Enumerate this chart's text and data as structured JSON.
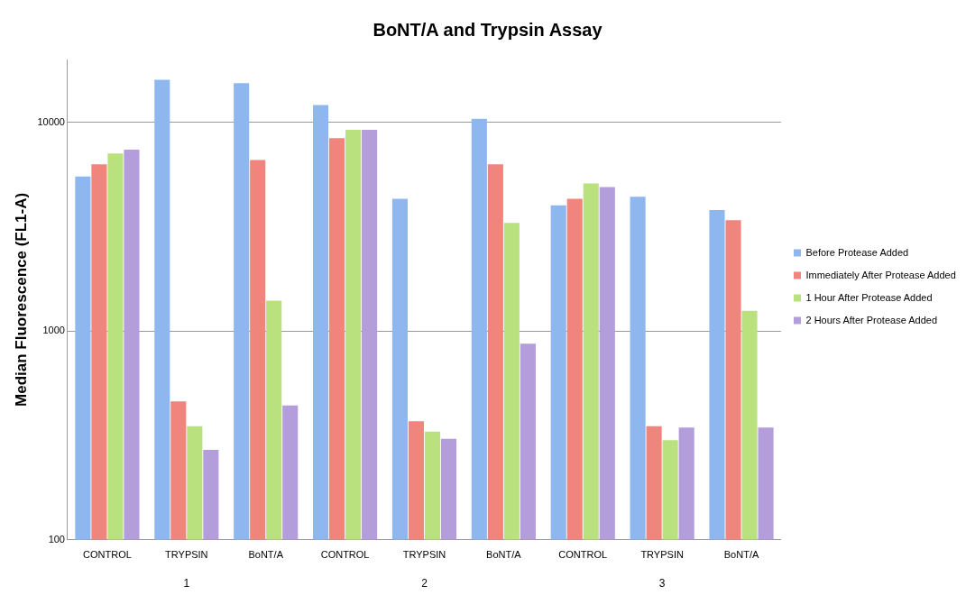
{
  "chart_data": {
    "type": "bar",
    "title": "BoNT/A and Trypsin Assay",
    "ylabel": "Median Fluorescence (FL1-A)",
    "categories": [
      "CONTROL",
      "TRYPSIN",
      "BoNT/A",
      "CONTROL",
      "TRYPSIN",
      "BoNT/A",
      "CONTROL",
      "TRYPSIN",
      "BoNT/A"
    ],
    "series": [
      {
        "name": "Before Protease Added",
        "color": "#8fb7ef",
        "values": [
          5500,
          16000,
          15400,
          12100,
          4300,
          10400,
          4000,
          4400,
          3800
        ]
      },
      {
        "name": "Immediately After Protease Added",
        "color": "#f0857e",
        "values": [
          6300,
          460,
          6600,
          8400,
          370,
          6300,
          4300,
          350,
          3400
        ]
      },
      {
        "name": "1 Hour After Protease Added",
        "color": "#b9e27f",
        "values": [
          7100,
          350,
          1400,
          9200,
          330,
          3300,
          5100,
          300,
          1250
        ]
      },
      {
        "name": "2 Hours After Protease Added",
        "color": "#b39ddb",
        "values": [
          7400,
          270,
          440,
          9200,
          305,
          870,
          4900,
          345,
          345
        ]
      }
    ],
    "annotations": [
      "1",
      "2",
      "3"
    ],
    "log": "y",
    "ylim": [
      100,
      20000
    ],
    "yticks": [
      100,
      1000,
      10000
    ],
    "grid": "y",
    "legend": "right"
  }
}
